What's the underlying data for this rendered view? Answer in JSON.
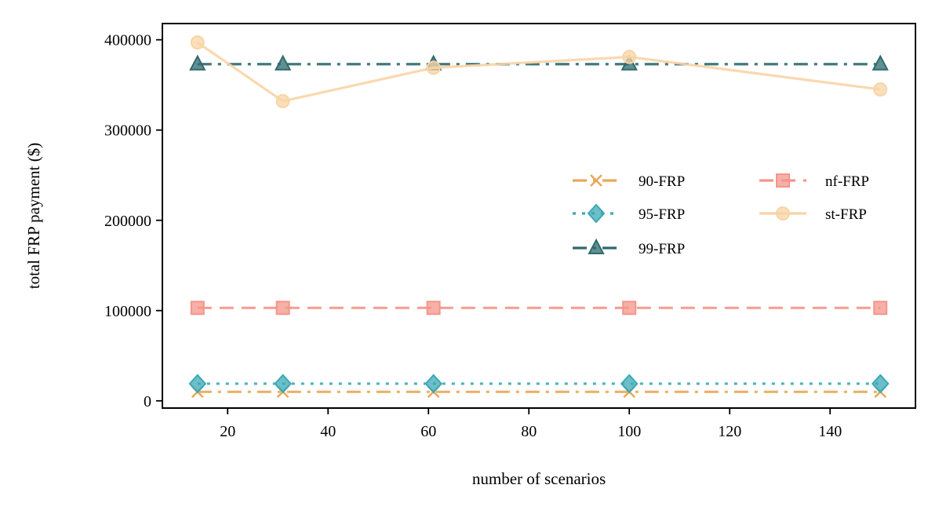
{
  "chart_data": {
    "type": "line",
    "xlabel": "number of scenarios",
    "ylabel": "total FRP payment ($)",
    "xlim": [
      7,
      157
    ],
    "ylim": [
      -8000,
      418000
    ],
    "xticks": [
      20,
      40,
      60,
      80,
      100,
      120,
      140
    ],
    "yticks": [
      0,
      100000,
      200000,
      300000,
      400000
    ],
    "grid": false,
    "legend_position": "center-right",
    "x": [
      14,
      31,
      61,
      100,
      150
    ],
    "series": [
      {
        "name": "90-FRP",
        "values": [
          10000,
          10000,
          10000,
          10000,
          10000
        ],
        "color": "#e8a85a",
        "marker": "x",
        "linestyle": "dashdot"
      },
      {
        "name": "95-FRP",
        "values": [
          19000,
          19000,
          19000,
          19000,
          19000
        ],
        "color": "#3ba8b5",
        "marker": "diamond",
        "linestyle": "dotted"
      },
      {
        "name": "99-FRP",
        "values": [
          373000,
          373000,
          373000,
          373000,
          373000
        ],
        "color": "#2e6a6e",
        "marker": "triangle",
        "linestyle": "dashdot"
      },
      {
        "name": "nf-FRP",
        "values": [
          103000,
          103000,
          103000,
          103000,
          103000
        ],
        "color": "#f4958a",
        "marker": "square",
        "linestyle": "dashed"
      },
      {
        "name": "st-FRP",
        "values": [
          397000,
          332000,
          369000,
          381000,
          345000
        ],
        "color": "#f8d4a6",
        "marker": "circle",
        "linestyle": "solid"
      }
    ]
  }
}
